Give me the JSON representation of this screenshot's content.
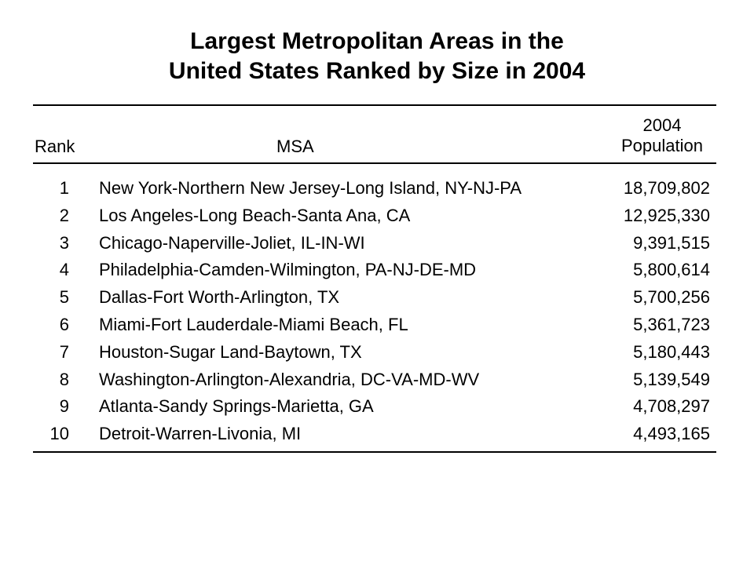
{
  "title": {
    "line1": "Largest Metropolitan Areas in the",
    "line2": "United States Ranked by Size in 2004"
  },
  "table": {
    "headers": {
      "rank": "Rank",
      "msa": "MSA",
      "pop_line1": "2004",
      "pop_line2": "Population"
    },
    "rows": [
      {
        "rank": "1",
        "msa": "New York-Northern New Jersey-Long Island, NY-NJ-PA",
        "population": "18,709,802"
      },
      {
        "rank": "2",
        "msa": "Los Angeles-Long Beach-Santa Ana, CA",
        "population": "12,925,330"
      },
      {
        "rank": "3",
        "msa": "Chicago-Naperville-Joliet, IL-IN-WI",
        "population": "9,391,515"
      },
      {
        "rank": "4",
        "msa": "Philadelphia-Camden-Wilmington, PA-NJ-DE-MD",
        "population": "5,800,614"
      },
      {
        "rank": "5",
        "msa": "Dallas-Fort Worth-Arlington, TX",
        "population": "5,700,256"
      },
      {
        "rank": "6",
        "msa": "Miami-Fort Lauderdale-Miami Beach, FL",
        "population": "5,361,723"
      },
      {
        "rank": "7",
        "msa": "Houston-Sugar Land-Baytown, TX",
        "population": "5,180,443"
      },
      {
        "rank": "8",
        "msa": "Washington-Arlington-Alexandria, DC-VA-MD-WV",
        "population": "5,139,549"
      },
      {
        "rank": "9",
        "msa": "Atlanta-Sandy Springs-Marietta, GA",
        "population": "4,708,297"
      },
      {
        "rank": "10",
        "msa": "Detroit-Warren-Livonia, MI",
        "population": "4,493,165"
      }
    ]
  }
}
